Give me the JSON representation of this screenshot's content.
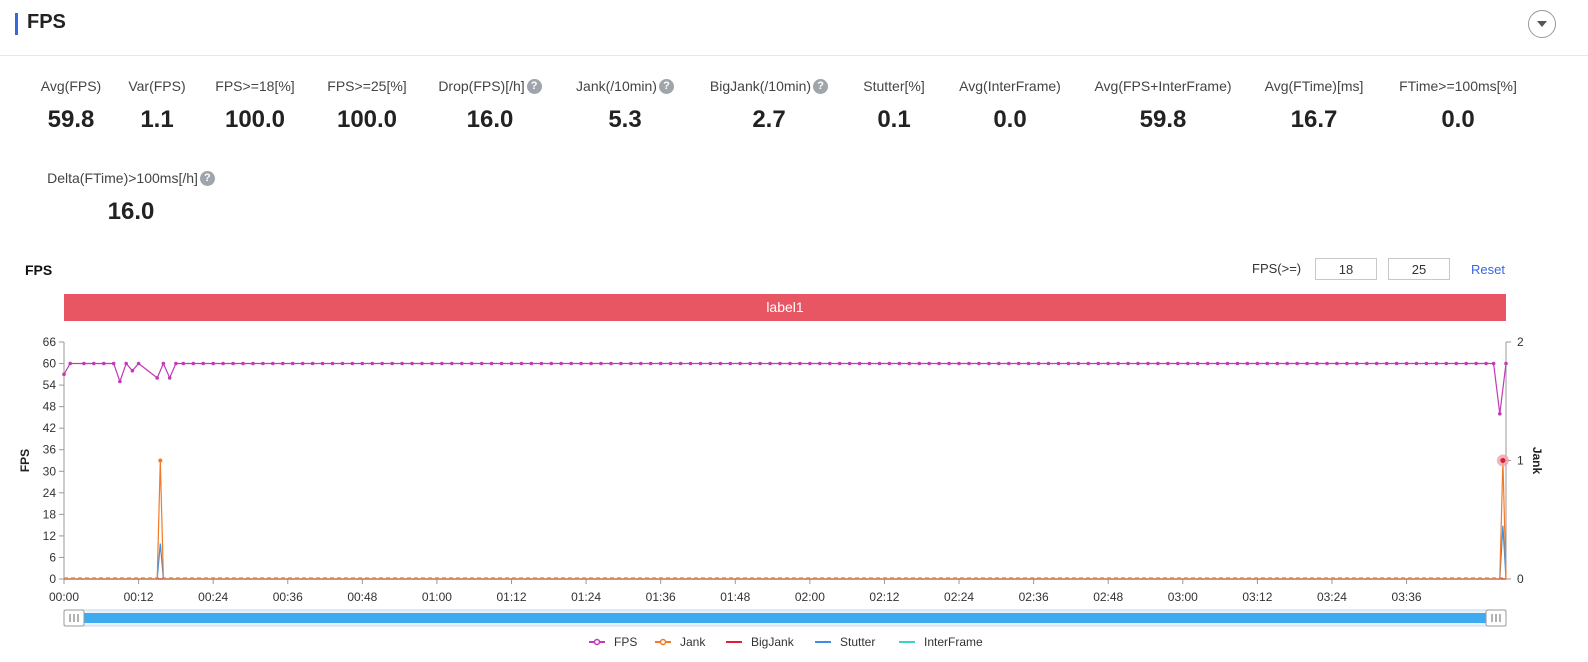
{
  "header": {
    "title": "FPS"
  },
  "metrics": [
    {
      "label": "Avg(FPS)",
      "value": "59.8"
    },
    {
      "label": "Var(FPS)",
      "value": "1.1"
    },
    {
      "label": "FPS>=18[%]",
      "value": "100.0"
    },
    {
      "label": "FPS>=25[%]",
      "value": "100.0"
    },
    {
      "label": "Drop(FPS)[/h]",
      "value": "16.0",
      "help_icon": "question-circle-icon"
    },
    {
      "label": "Jank(/10min)",
      "value": "5.3",
      "help_icon": "question-circle-icon"
    },
    {
      "label": "BigJank(/10min)",
      "value": "2.7",
      "help_icon": "question-circle-icon"
    },
    {
      "label": "Stutter[%]",
      "value": "0.1"
    },
    {
      "label": "Avg(InterFrame)",
      "value": "0.0"
    },
    {
      "label": "Avg(FPS+InterFrame)",
      "value": "59.8"
    },
    {
      "label": "Avg(FTime)[ms]",
      "value": "16.7"
    },
    {
      "label": "FTime>=100ms[%]",
      "value": "0.0"
    },
    {
      "label": "Delta(FTime)>100ms[/h]",
      "value": "16.0",
      "help_icon": "question-circle-icon"
    }
  ],
  "chart_section": {
    "title": "FPS",
    "threshold_label": "FPS(>=)",
    "threshold_low": "18",
    "threshold_high": "25",
    "reset_label": "Reset",
    "band_label": "label1"
  },
  "chart_data": {
    "type": "line",
    "x_ticks": [
      "00:00",
      "00:12",
      "00:24",
      "00:36",
      "00:48",
      "01:00",
      "01:12",
      "01:24",
      "01:36",
      "01:48",
      "02:00",
      "02:12",
      "02:24",
      "02:36",
      "02:48",
      "03:00",
      "03:12",
      "03:24",
      "03:36"
    ],
    "x_range_seconds": [
      0,
      232
    ],
    "ylabel": "FPS",
    "y2label": "Jank",
    "ylim": [
      0,
      66
    ],
    "y_ticks": [
      0,
      6,
      12,
      18,
      24,
      30,
      36,
      42,
      48,
      54,
      60,
      66
    ],
    "y2lim": [
      0,
      2
    ],
    "y2_ticks": [
      0,
      1,
      2
    ],
    "legend": [
      "FPS",
      "Jank",
      "BigJank",
      "Stutter",
      "InterFrame"
    ],
    "legend_position": "bottom-center",
    "colors": {
      "FPS": "#c23ab5",
      "Jank": "#f07a29",
      "BigJank": "#e0202e",
      "Stutter": "#3a8fe0",
      "InterFrame": "#3fd0c8"
    },
    "series": [
      {
        "name": "FPS",
        "axis": "left",
        "default": 60,
        "points": [
          [
            0,
            57
          ],
          [
            1,
            60
          ],
          [
            9,
            55
          ],
          [
            10,
            60
          ],
          [
            11,
            58
          ],
          [
            12,
            60
          ],
          [
            15,
            56
          ],
          [
            16,
            60
          ],
          [
            17,
            56
          ],
          [
            18,
            60
          ],
          [
            230,
            60
          ],
          [
            231,
            46
          ],
          [
            232,
            60
          ]
        ]
      },
      {
        "name": "Jank",
        "axis": "right",
        "points": [
          [
            0,
            0
          ],
          [
            15,
            0
          ],
          [
            15.5,
            1
          ],
          [
            16,
            0
          ],
          [
            231,
            0
          ],
          [
            231.5,
            1
          ],
          [
            232,
            0
          ]
        ]
      },
      {
        "name": "BigJank",
        "axis": "right",
        "points": [
          [
            0,
            0
          ],
          [
            232,
            0
          ]
        ]
      },
      {
        "name": "Stutter",
        "axis": "right",
        "points": [
          [
            0,
            0
          ],
          [
            15,
            0
          ],
          [
            15.5,
            0.3
          ],
          [
            16,
            0
          ],
          [
            231,
            0
          ],
          [
            231.5,
            0.45
          ],
          [
            232,
            0
          ]
        ]
      },
      {
        "name": "InterFrame",
        "axis": "right",
        "points": [
          [
            0,
            0.01
          ],
          [
            232,
            0.01
          ]
        ]
      }
    ],
    "highlight": {
      "series": "Jank",
      "x": 231.5,
      "y": 1
    }
  }
}
